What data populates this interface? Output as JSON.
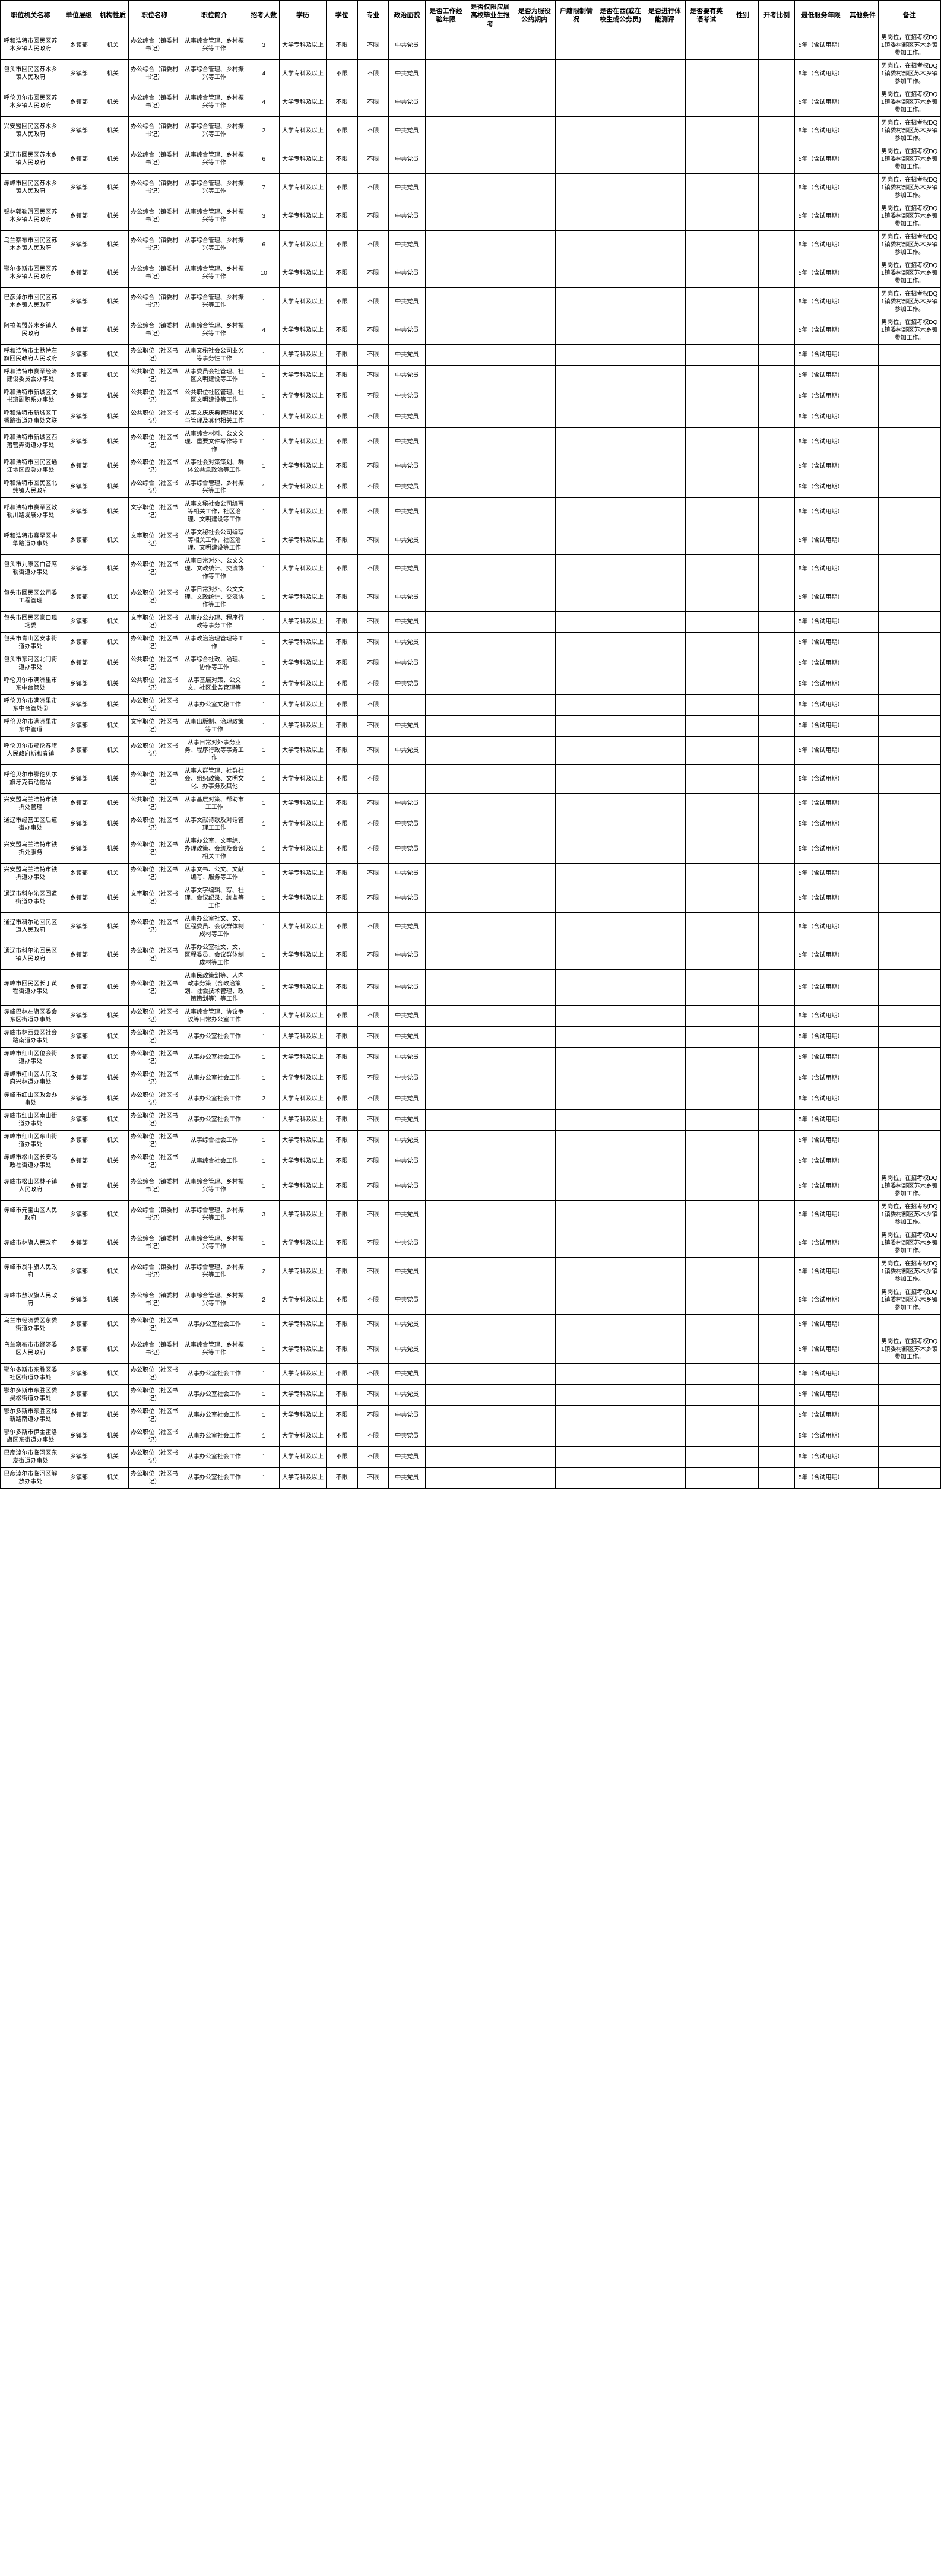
{
  "headers": [
    "职位机关名称",
    "单位层级",
    "机构性质",
    "职位名称",
    "职位简介",
    "招考人数",
    "学历",
    "学位",
    "专业",
    "政治面貌",
    "是否工作经验年限",
    "是否仅限应届高校毕业生报考",
    "是否为服役公约期内",
    "户籍限制情况",
    "是否在西(或在校生或公务员)",
    "是否进行体能测评",
    "是否要有英语考试",
    "性别",
    "开考比例",
    "最低服务年限",
    "其他条件",
    "备注"
  ],
  "defaults": {
    "nature": "乡镇部",
    "inst": "机关",
    "edu": "大学专科及以上",
    "school": "不限",
    "major": "不限",
    "pol": "中共党员",
    "period": "5年（含试用期）",
    "note_std": "男岗位，在招考权DQ1镇委村部区苏木乡镇参加工作。"
  },
  "rows": [
    {
      "org": "呼和浩特市回民区苏木乡镇人民政府",
      "posname": "办公综合（镇委村书记）",
      "intro": "从事综合管理、乡村振兴等工作",
      "num": "3",
      "note": "note_std"
    },
    {
      "org": "包头市回民区苏木乡镇人民政府",
      "posname": "办公综合（镇委村书记）",
      "intro": "从事综合管理、乡村振兴等工作",
      "num": "4",
      "note": "note_std"
    },
    {
      "org": "呼伦贝尔市回民区苏木乡镇人民政府",
      "posname": "办公综合（镇委村书记）",
      "intro": "从事综合管理、乡村振兴等工作",
      "num": "4",
      "note": "note_std"
    },
    {
      "org": "兴安盟回民区苏木乡镇人民政府",
      "posname": "办公综合（镇委村书记）",
      "intro": "从事综合管理、乡村振兴等工作",
      "num": "2",
      "note": "note_std"
    },
    {
      "org": "通辽市回民区苏木乡镇人民政府",
      "posname": "办公综合（镇委村书记）",
      "intro": "从事综合管理、乡村振兴等工作",
      "num": "6",
      "note": "note_std"
    },
    {
      "org": "赤峰市回民区苏木乡镇人民政府",
      "posname": "办公综合（镇委村书记）",
      "intro": "从事综合管理、乡村振兴等工作",
      "num": "7",
      "note": "note_std"
    },
    {
      "org": "锡林郭勒盟回民区苏木乡镇人民政府",
      "posname": "办公综合（镇委村书记）",
      "intro": "从事综合管理、乡村振兴等工作",
      "num": "3",
      "note": "note_std"
    },
    {
      "org": "乌兰察布市回民区苏木乡镇人民政府",
      "posname": "办公综合（镇委村书记）",
      "intro": "从事综合管理、乡村振兴等工作",
      "num": "6",
      "note": "note_std"
    },
    {
      "org": "鄂尔多斯市回民区苏木乡镇人民政府",
      "posname": "办公综合（镇委村书记）",
      "intro": "从事综合管理、乡村振兴等工作",
      "num": "10",
      "note": "note_std"
    },
    {
      "org": "巴彦淖尔市回民区苏木乡镇人民政府",
      "posname": "办公综合（镇委村书记）",
      "intro": "从事综合管理、乡村振兴等工作",
      "num": "1",
      "note": "note_std"
    },
    {
      "org": "阿拉善盟苏木乡镇人民政府",
      "posname": "办公综合（镇委村书记）",
      "intro": "从事综合管理、乡村振兴等工作",
      "num": "4",
      "note": "note_std"
    },
    {
      "org": "呼和浩特市土默特左旗回民政府人民政府",
      "posname": "办公职位（社区书记）",
      "intro": "从事文秘社会公司业务等事务性工作",
      "num": "1",
      "pol": "中共党员",
      "note": ""
    },
    {
      "org": "呼和浩特市赛罕经济建设委员会办事处",
      "posname": "公共职位（社区书记）",
      "intro": "从事委员会社管理、社区文明建设等工作",
      "num": "1",
      "note": ""
    },
    {
      "org": "呼和浩特市新城区文书班副职系办事处",
      "posname": "公共职位（社区书记）",
      "intro": "公共职位社区管理、社区文明建设等工作",
      "num": "1",
      "note": ""
    },
    {
      "org": "呼和浩特市新城区丁香路街道办事处文联",
      "posname": "公共职位（社区书记）",
      "intro": "从事文庆庆典管理相关与管理及其他相关工作",
      "num": "1",
      "note": ""
    },
    {
      "org": "呼和浩特市新城区西落营弄街道办事处",
      "posname": "办公职位（社区书记）",
      "intro": "从事综合材料、公文文理、重要文件写作等工作",
      "num": "1",
      "pol": "中共党员",
      "note": ""
    },
    {
      "org": "呼和浩特市回民区通江地区应急办事处",
      "posname": "办公职位（社区书记）",
      "intro": "从事社会对策策划、群体公共急政治等工作",
      "num": "1",
      "pol": "中共党员",
      "note": ""
    },
    {
      "org": "呼和浩特市回民区北纬镇人民政府",
      "posname": "办公综合（社区书记）",
      "intro": "从事综合管理、乡村振兴等工作",
      "num": "1",
      "note": ""
    },
    {
      "org": "呼和浩特市赛罕区敕勒川路发展办事处",
      "posname": "文字职位（社区书记）",
      "intro": "从事文秘社会公司编写等相关工作，社区治理、文明建设等工作",
      "num": "1",
      "note": ""
    },
    {
      "org": "呼和浩特市赛罕区中华路道办事处",
      "posname": "文字职位（社区书记）",
      "intro": "从事文秘社会公司编写等相关工作，社区治理、文明建设等工作",
      "num": "1",
      "note": ""
    },
    {
      "org": "包头市九原区白音席勒街道办事处",
      "posname": "办公职位（社区书记）",
      "intro": "从事日常对外、公文文理、文政统计、交流协作等工作",
      "num": "1",
      "pol": "中共党员",
      "note": ""
    },
    {
      "org": "包头市回民区公司委工程管理",
      "posname": "办公职位（社区书记）",
      "intro": "从事日常对外、公文文理、文政统计、交流协作等工作",
      "num": "1",
      "pol": "中共党员",
      "note": ""
    },
    {
      "org": "包头市回民区豪口现场委",
      "posname": "文字职位（社区书记）",
      "intro": "从事办公办理、程序行政等事务工作",
      "num": "1",
      "note": ""
    },
    {
      "org": "包头市青山区安事街道办事处",
      "posname": "办公职位（社区书记）",
      "intro": "从事政治治理管理等工作",
      "num": "1",
      "note": ""
    },
    {
      "org": "包头市东河区北门街道办事处",
      "posname": "公共职位（社区书记）",
      "intro": "从事综合社政、治理、协作等工作",
      "num": "1",
      "note": ""
    },
    {
      "org": "呼伦贝尔市满洲里市东中台管处",
      "posname": "公共职位（社区书记）",
      "intro": "从事基层对策、公文文、社区业务管理等",
      "num": "1",
      "note": ""
    },
    {
      "org": "呼伦贝尔市满洲里市东中台管处②",
      "posname": "办公职位（社区书记）",
      "intro": "从事办公室文秘工作",
      "num": "1",
      "pol": "",
      "note": ""
    },
    {
      "org": "呼伦贝尔市满洲里市东中管道",
      "posname": "文字职位（社区书记）",
      "intro": "从事出版制、治理政策等工作",
      "num": "1",
      "note": ""
    },
    {
      "org": "呼伦贝尔市鄂伦春旗人民政府斯和春镇",
      "posname": "办公职位（社区书记）",
      "intro": "从事日常对外事务业务、程序行政等事务工作",
      "num": "1",
      "note": ""
    },
    {
      "org": "呼伦贝尔市鄂伦贝尔旗牙克石动物站",
      "posname": "办公职位（社区书记）",
      "intro": "从事人群管理、社群社会、组织政策、文明文化、办事务及其他",
      "num": "1",
      "pol": "",
      "note": ""
    },
    {
      "org": "兴安盟乌兰浩特市铁折处管理",
      "posname": "公共职位（社区书记）",
      "intro": "从事基层对策、帮助市工工作",
      "num": "1",
      "note": ""
    },
    {
      "org": "通辽市经营工区后道街办事处",
      "posname": "办公职位（社区书记）",
      "intro": "从事文献诗歌及对话管理工工作",
      "num": "1",
      "note": ""
    },
    {
      "org": "兴安盟乌兰浩特市铁折处服务",
      "posname": "办公职位（社区书记）",
      "intro": "从事办公室、文字综、办理政策、会统及会议相关工作",
      "num": "1",
      "note": ""
    },
    {
      "org": "兴安盟乌兰浩特市铁折道办事处",
      "posname": "办公职位（社区书记）",
      "intro": "从事文书、公文、文献编写、服务等工作",
      "num": "1",
      "note": ""
    },
    {
      "org": "通辽市科尔沁区回道街道办事处",
      "posname": "文字职位（社区书记）",
      "intro": "从事文字编辑、写、社理、会议纪录、统监等工作",
      "num": "1",
      "note": ""
    },
    {
      "org": "通辽市科尔沁回民区道人民政府",
      "posname": "办公职位（社区书记）",
      "intro": "从事办公室社文、文、区程委员、会议群体制成材等工作",
      "num": "1",
      "note": ""
    },
    {
      "org": "通辽市科尔沁回民区镇人民政府",
      "posname": "办公职位（社区书记）",
      "intro": "从事办公室社文、文、区程委员、会议群体制成材等工作",
      "num": "1",
      "note": ""
    },
    {
      "org": "赤峰市回民区长丁黄程街道办事处",
      "posname": "办公职位（社区书记）",
      "intro": "从事民政策划等、人内政事务策（含政治策划、社会技术管理、政策策划等）等工作",
      "num": "1",
      "note": ""
    },
    {
      "org": "赤峰巴林左旗区委会东区街道办事处",
      "posname": "办公职位（社区书记）",
      "intro": "从事综合管理、协议争议等日常办公室工作",
      "num": "1",
      "note": ""
    },
    {
      "org": "赤峰市林西县区社会路南道办事处",
      "posname": "办公职位（社区书记）",
      "intro": "从事办公室社会工作",
      "num": "1",
      "note": ""
    },
    {
      "org": "赤峰市红山区位会街道办事处",
      "posname": "办公职位（社区书记）",
      "intro": "从事办公室社会工作",
      "num": "1",
      "note": ""
    },
    {
      "org": "赤峰市红山区人民政府兴林道办事处",
      "posname": "办公职位（社区书记）",
      "intro": "从事办公室社会工作",
      "num": "1",
      "note": ""
    },
    {
      "org": "赤峰市红山区政会办事处",
      "posname": "办公职位（社区书记）",
      "intro": "从事办公室社会工作",
      "num": "2",
      "note": ""
    },
    {
      "org": "赤峰市红山区南山街道办事处",
      "posname": "办公职位（社区书记）",
      "intro": "从事办公室社会工作",
      "num": "1",
      "note": ""
    },
    {
      "org": "赤峰市红山区东山街道办事处",
      "posname": "办公职位（社区书记）",
      "intro": "从事综合社会工作",
      "num": "1",
      "note": ""
    },
    {
      "org": "赤峰市松山区长安吗政社街道办事处",
      "posname": "办公职位（社区书记）",
      "intro": "从事综合社会工作",
      "num": "1",
      "pol": "中共党员",
      "note": ""
    },
    {
      "org": "赤峰市松山区林子镇人民政府",
      "posname": "办公综合（镇委村书记）",
      "intro": "从事综合管理、乡村振兴等工作",
      "num": "1",
      "note": "note_std"
    },
    {
      "org": "赤峰市元宝山区人民政府",
      "posname": "办公综合（镇委村书记）",
      "intro": "从事综合管理、乡村振兴等工作",
      "num": "3",
      "note": "note_std"
    },
    {
      "org": "赤峰市林旗人民政府",
      "posname": "办公综合（镇委村书记）",
      "intro": "从事综合管理、乡村振兴等工作",
      "num": "1",
      "note": "note_std"
    },
    {
      "org": "赤峰市翁牛旗人民政府",
      "posname": "办公综合（镇委村书记）",
      "intro": "从事综合管理、乡村振兴等工作",
      "num": "2",
      "note": "note_std"
    },
    {
      "org": "赤峰市敖汉旗人民政府",
      "posname": "办公综合（镇委村书记）",
      "intro": "从事综合管理、乡村振兴等工作",
      "num": "2",
      "note": "note_std"
    },
    {
      "org": "乌兰市经济委区东委街道办事处",
      "posname": "办公职位（社区书记）",
      "intro": "从事办公室社会工作",
      "num": "1",
      "note": ""
    },
    {
      "org": "乌兰察布市市经济委区人民政府",
      "posname": "办公综合（镇委村书记）",
      "intro": "从事综合管理、乡村振兴等工作",
      "num": "1",
      "note": "note_std"
    },
    {
      "org": "鄂尔多斯市东胜区委社区街道办事处",
      "posname": "办公职位（社区书记）",
      "intro": "从事办公室社会工作",
      "num": "1",
      "note": ""
    },
    {
      "org": "鄂尔多斯市东胜区委吴松街道办事处",
      "posname": "办公职位（社区书记）",
      "intro": "从事办公室社会工作",
      "num": "1",
      "note": ""
    },
    {
      "org": "鄂尔多斯市东胜区林新路南道办事处",
      "posname": "办公职位（社区书记）",
      "intro": "从事办公室社会工作",
      "num": "1",
      "note": ""
    },
    {
      "org": "鄂尔多斯市伊金霍洛旗区东街道办事处",
      "posname": "办公职位（社区书记）",
      "intro": "从事办公室社会工作",
      "num": "1",
      "note": ""
    },
    {
      "org": "巴彦淖尔市临河区东发街道办事处",
      "posname": "办公职位（社区书记）",
      "intro": "从事办公室社会工作",
      "num": "1",
      "note": ""
    },
    {
      "org": "巴彦淖尔市临河区解放办事处",
      "posname": "办公职位（社区书记）",
      "intro": "从事办公室社会工作",
      "num": "1",
      "note": ""
    }
  ]
}
